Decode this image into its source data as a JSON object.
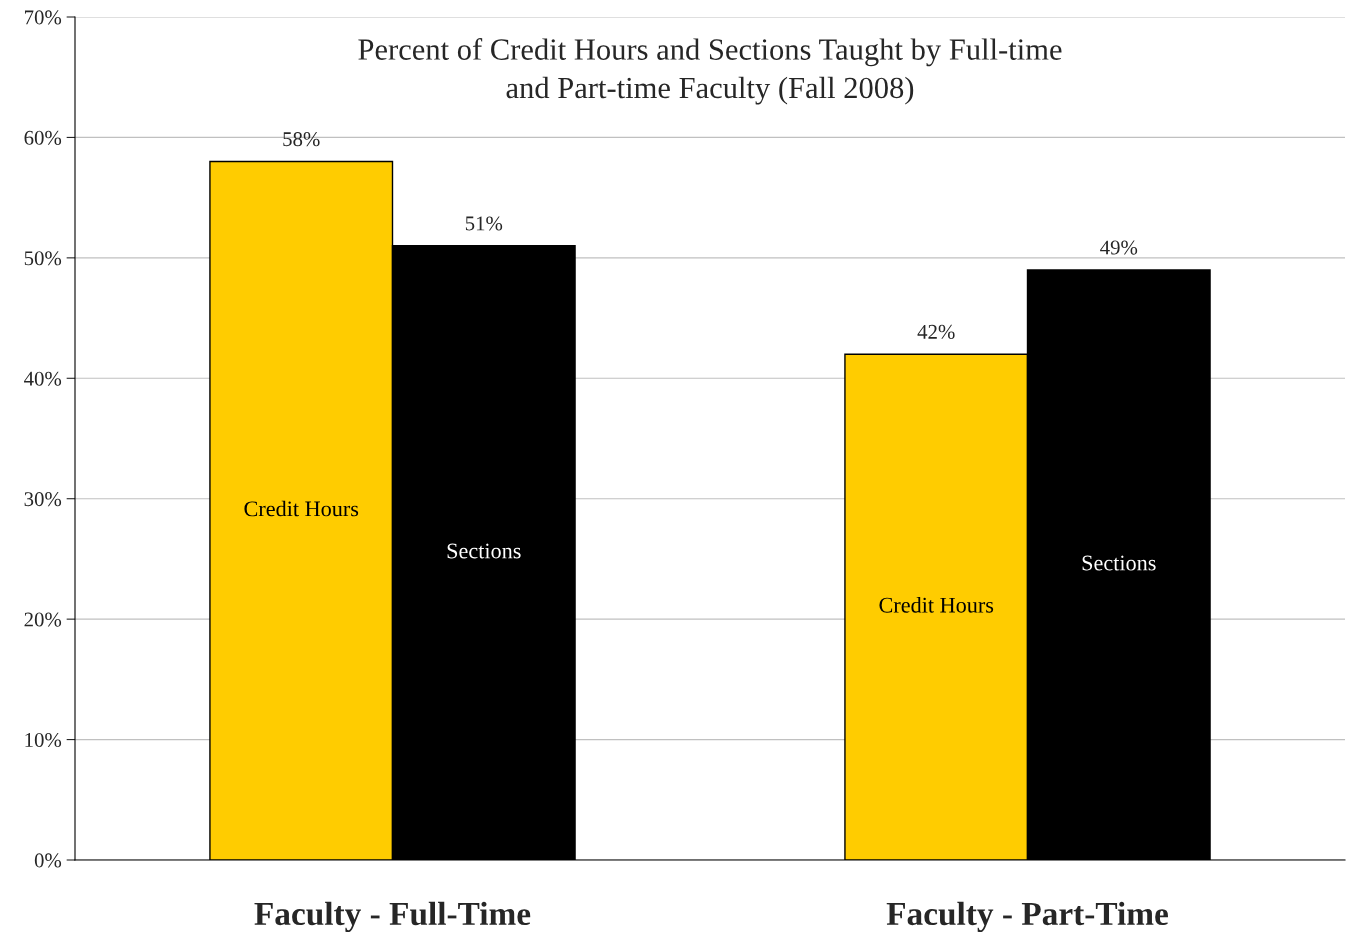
{
  "chart_data": {
    "type": "bar",
    "title": "Percent of Credit Hours and Sections Taught by Full-time\nand Part-time Faculty (Fall 2008)",
    "categories": [
      "Faculty - Full-Time",
      "Faculty - Part-Time"
    ],
    "series": [
      {
        "name": "Credit Hours",
        "color": "#ffcc00",
        "values": [
          58,
          42
        ],
        "value_labels": [
          "58%",
          "42%"
        ]
      },
      {
        "name": "Sections",
        "color": "#000000",
        "values": [
          51,
          49
        ],
        "value_labels": [
          "51%",
          "49%"
        ]
      }
    ],
    "ylim": [
      0,
      70
    ],
    "yticks": [
      {
        "value": 0,
        "label": "0%"
      },
      {
        "value": 10,
        "label": "10%"
      },
      {
        "value": 20,
        "label": "20%"
      },
      {
        "value": 30,
        "label": "30%"
      },
      {
        "value": 40,
        "label": "40%"
      },
      {
        "value": 50,
        "label": "50%"
      },
      {
        "value": 60,
        "label": "60%"
      },
      {
        "value": 70,
        "label": "70%"
      }
    ],
    "grid": "y",
    "legend": false
  }
}
